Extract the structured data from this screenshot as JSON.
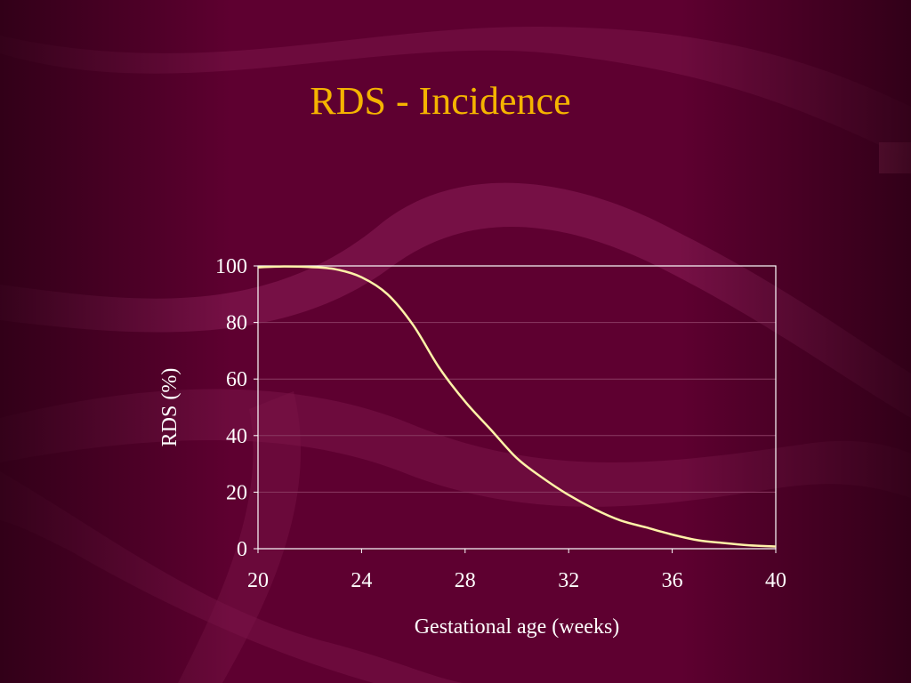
{
  "slide": {
    "title": "RDS - Incidence"
  },
  "colors": {
    "background": "#5e0030",
    "title": "#f5b400",
    "curve": "#fff2a8",
    "axis": "#ffffff",
    "grid": "#8a3a62"
  },
  "chart_data": {
    "type": "line",
    "xlabel": "Gestational age (weeks)",
    "ylabel": "RDS (%)",
    "xlim": [
      20,
      40
    ],
    "ylim": [
      0,
      100
    ],
    "xticks": [
      20,
      24,
      28,
      32,
      36,
      40
    ],
    "yticks": [
      0,
      20,
      40,
      60,
      80,
      100
    ],
    "grid": true,
    "legend": "none",
    "series": [
      {
        "x": [
          20,
          21,
          22,
          23,
          24,
          25,
          26,
          27,
          28,
          29,
          30,
          31,
          32,
          33,
          34,
          35,
          36,
          37,
          38,
          39,
          40
        ],
        "y": [
          99.5,
          99.8,
          99.6,
          98.8,
          96,
          90,
          79,
          64,
          52,
          42,
          32,
          25,
          19,
          14,
          10,
          7.5,
          5,
          3,
          2,
          1.2,
          0.8
        ]
      }
    ]
  }
}
